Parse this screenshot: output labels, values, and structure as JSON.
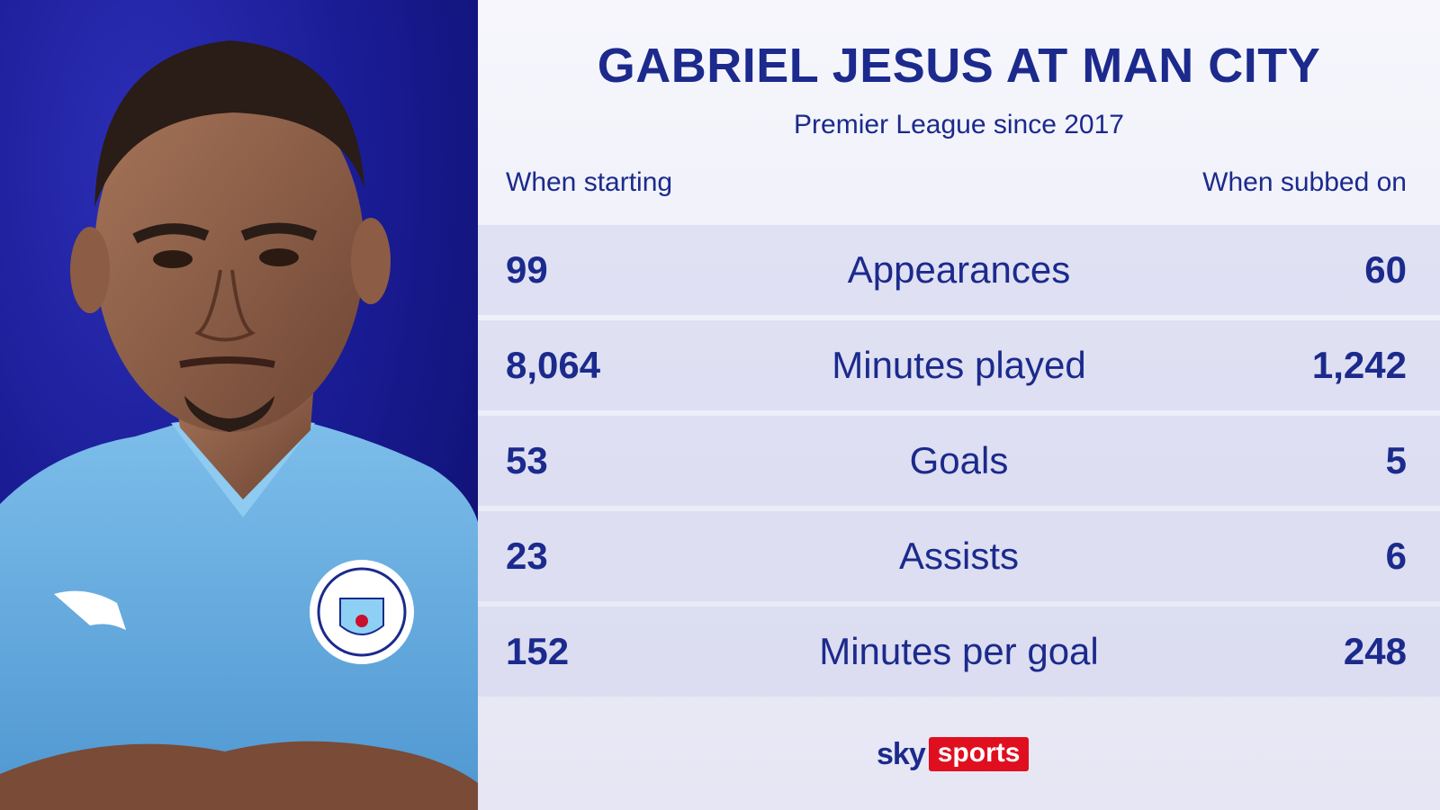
{
  "header": {
    "title": "GABRIEL JESUS AT MAN CITY",
    "subtitle": "Premier League since 2017"
  },
  "columns": {
    "left_label": "When starting",
    "right_label": "When subbed on"
  },
  "stats": [
    {
      "label": "Appearances",
      "starting": "99",
      "subbed": "60"
    },
    {
      "label": "Minutes played",
      "starting": "8,064",
      "subbed": "1,242"
    },
    {
      "label": "Goals",
      "starting": "53",
      "subbed": "5"
    },
    {
      "label": "Assists",
      "starting": "23",
      "subbed": "6"
    },
    {
      "label": "Minutes per goal",
      "starting": "152",
      "subbed": "248"
    }
  ],
  "branding": {
    "sky": "sky",
    "sports": "sports"
  },
  "colors": {
    "accent_navy": "#1b2a8c",
    "panel_blue": "#1a1c95",
    "brand_red": "#e00f1f",
    "shirt_blue": "#6fb4e6"
  }
}
